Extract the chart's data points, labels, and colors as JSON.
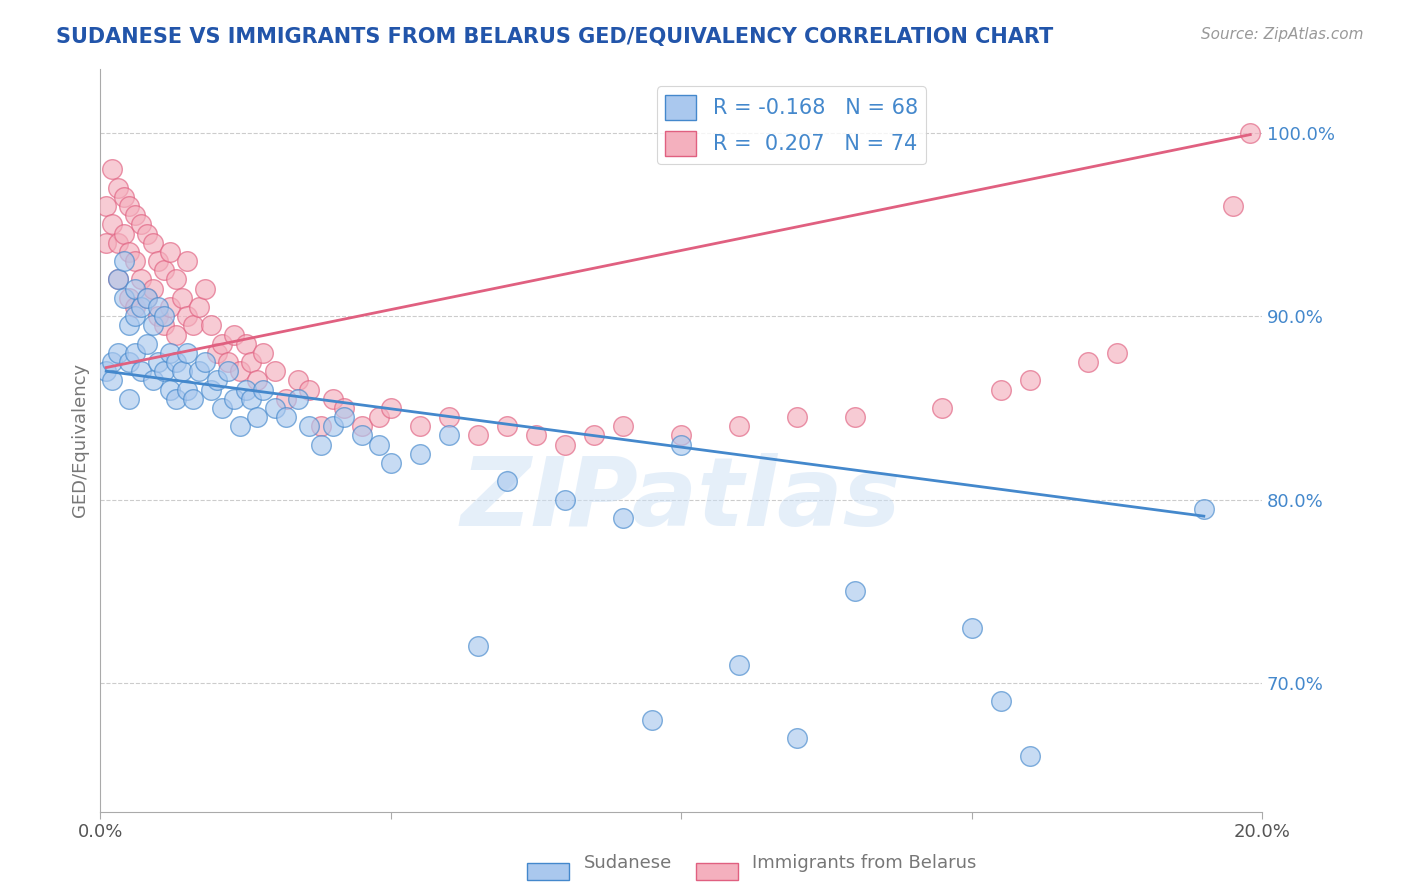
{
  "title": "SUDANESE VS IMMIGRANTS FROM BELARUS GED/EQUIVALENCY CORRELATION CHART",
  "source": "Source: ZipAtlas.com",
  "ylabel": "GED/Equivalency",
  "legend_label1": "Sudanese",
  "legend_label2": "Immigrants from Belarus",
  "R1": -0.168,
  "N1": 68,
  "R2": 0.207,
  "N2": 74,
  "color_blue": "#aac8ee",
  "color_pink": "#f4b0be",
  "line_color_blue": "#4488cc",
  "line_color_pink": "#e06080",
  "xlim": [
    0.0,
    0.2
  ],
  "ylim": [
    0.63,
    1.035
  ],
  "yticks": [
    0.7,
    0.8,
    0.9,
    1.0
  ],
  "ytick_labels": [
    "70.0%",
    "80.0%",
    "90.0%",
    "100.0%"
  ],
  "xticks": [
    0.0,
    0.05,
    0.1,
    0.15,
    0.2
  ],
  "xtick_labels": [
    "0.0%",
    "",
    "",
    "",
    "20.0%"
  ],
  "watermark": "ZIPatlas",
  "title_color": "#2255aa",
  "axis_label_color": "#777777",
  "tick_color": "#555555",
  "grid_color": "#cccccc",
  "background_color": "#ffffff",
  "blue_points_x": [
    0.001,
    0.002,
    0.002,
    0.003,
    0.003,
    0.004,
    0.004,
    0.005,
    0.005,
    0.005,
    0.006,
    0.006,
    0.006,
    0.007,
    0.007,
    0.008,
    0.008,
    0.009,
    0.009,
    0.01,
    0.01,
    0.011,
    0.011,
    0.012,
    0.012,
    0.013,
    0.013,
    0.014,
    0.015,
    0.015,
    0.016,
    0.017,
    0.018,
    0.019,
    0.02,
    0.021,
    0.022,
    0.023,
    0.024,
    0.025,
    0.026,
    0.027,
    0.028,
    0.03,
    0.032,
    0.034,
    0.036,
    0.038,
    0.04,
    0.042,
    0.045,
    0.048,
    0.05,
    0.055,
    0.06,
    0.065,
    0.07,
    0.08,
    0.09,
    0.095,
    0.1,
    0.11,
    0.12,
    0.13,
    0.15,
    0.155,
    0.16,
    0.19
  ],
  "blue_points_y": [
    0.87,
    0.875,
    0.865,
    0.92,
    0.88,
    0.93,
    0.91,
    0.895,
    0.875,
    0.855,
    0.915,
    0.9,
    0.88,
    0.905,
    0.87,
    0.91,
    0.885,
    0.895,
    0.865,
    0.905,
    0.875,
    0.9,
    0.87,
    0.88,
    0.86,
    0.875,
    0.855,
    0.87,
    0.88,
    0.86,
    0.855,
    0.87,
    0.875,
    0.86,
    0.865,
    0.85,
    0.87,
    0.855,
    0.84,
    0.86,
    0.855,
    0.845,
    0.86,
    0.85,
    0.845,
    0.855,
    0.84,
    0.83,
    0.84,
    0.845,
    0.835,
    0.83,
    0.82,
    0.825,
    0.835,
    0.72,
    0.81,
    0.8,
    0.79,
    0.68,
    0.83,
    0.71,
    0.67,
    0.75,
    0.73,
    0.69,
    0.66,
    0.795
  ],
  "pink_points_x": [
    0.001,
    0.001,
    0.002,
    0.002,
    0.003,
    0.003,
    0.003,
    0.004,
    0.004,
    0.005,
    0.005,
    0.005,
    0.006,
    0.006,
    0.006,
    0.007,
    0.007,
    0.008,
    0.008,
    0.009,
    0.009,
    0.01,
    0.01,
    0.011,
    0.011,
    0.012,
    0.012,
    0.013,
    0.013,
    0.014,
    0.015,
    0.015,
    0.016,
    0.017,
    0.018,
    0.019,
    0.02,
    0.021,
    0.022,
    0.023,
    0.024,
    0.025,
    0.026,
    0.027,
    0.028,
    0.03,
    0.032,
    0.034,
    0.036,
    0.038,
    0.04,
    0.042,
    0.045,
    0.048,
    0.05,
    0.055,
    0.06,
    0.065,
    0.07,
    0.075,
    0.08,
    0.085,
    0.09,
    0.1,
    0.11,
    0.12,
    0.13,
    0.145,
    0.155,
    0.16,
    0.17,
    0.175,
    0.195,
    0.198
  ],
  "pink_points_y": [
    0.96,
    0.94,
    0.98,
    0.95,
    0.97,
    0.94,
    0.92,
    0.965,
    0.945,
    0.96,
    0.935,
    0.91,
    0.955,
    0.93,
    0.905,
    0.95,
    0.92,
    0.945,
    0.91,
    0.94,
    0.915,
    0.93,
    0.9,
    0.925,
    0.895,
    0.935,
    0.905,
    0.92,
    0.89,
    0.91,
    0.93,
    0.9,
    0.895,
    0.905,
    0.915,
    0.895,
    0.88,
    0.885,
    0.875,
    0.89,
    0.87,
    0.885,
    0.875,
    0.865,
    0.88,
    0.87,
    0.855,
    0.865,
    0.86,
    0.84,
    0.855,
    0.85,
    0.84,
    0.845,
    0.85,
    0.84,
    0.845,
    0.835,
    0.84,
    0.835,
    0.83,
    0.835,
    0.84,
    0.835,
    0.84,
    0.845,
    0.845,
    0.85,
    0.86,
    0.865,
    0.875,
    0.88,
    0.96,
    1.0
  ],
  "blue_line_x0": 0.001,
  "blue_line_x1": 0.19,
  "blue_line_y0": 0.87,
  "blue_line_y1": 0.791,
  "pink_line_x0": 0.001,
  "pink_line_x1": 0.198,
  "pink_line_y0": 0.872,
  "pink_line_y1": 0.999
}
